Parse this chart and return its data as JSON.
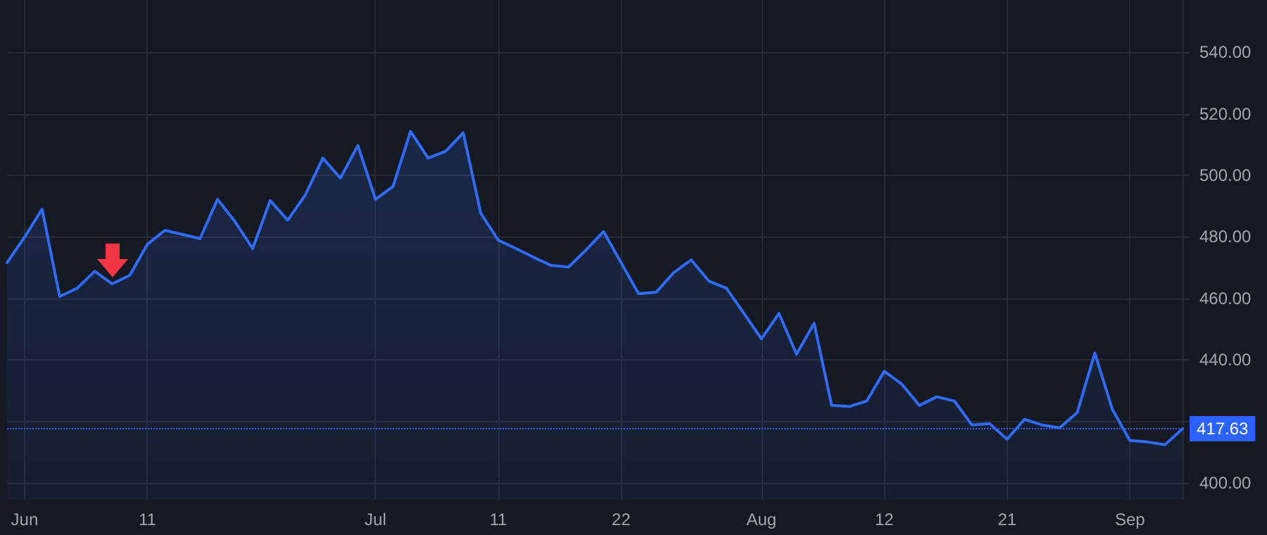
{
  "chart_data": {
    "type": "area",
    "categories": [
      null,
      "Jun",
      null,
      null,
      null,
      null,
      null,
      null,
      "11",
      null,
      null,
      null,
      null,
      null,
      null,
      null,
      null,
      null,
      null,
      null,
      null,
      "Jul",
      null,
      null,
      null,
      null,
      null,
      null,
      "11",
      null,
      null,
      null,
      null,
      null,
      null,
      "22",
      null,
      null,
      null,
      null,
      null,
      null,
      null,
      "Aug",
      null,
      null,
      null,
      null,
      null,
      null,
      "12",
      null,
      null,
      null,
      null,
      null,
      null,
      "21",
      null,
      null,
      null,
      null,
      null,
      null,
      "Sep",
      null,
      null,
      null
    ],
    "series": [
      {
        "color": "#2f6bf5",
        "values": [
          471.6,
          479.9,
          489.0,
          460.6,
          463.3,
          468.8,
          464.7,
          467.5,
          477.6,
          482.1,
          480.8,
          479.4,
          492.2,
          484.9,
          476.2,
          491.8,
          485.4,
          493.6,
          505.6,
          499.1,
          509.7,
          492.2,
          496.4,
          514.3,
          505.6,
          507.8,
          513.8,
          487.7,
          478.9,
          476.2,
          473.4,
          470.7,
          470.2,
          475.7,
          481.7,
          471.6,
          461.5,
          462.0,
          468.4,
          472.5,
          465.6,
          463.3,
          455.1,
          446.8,
          455.1,
          441.8,
          451.9,
          425.2,
          424.8,
          426.6,
          436.3,
          432.1,
          425.2,
          428.0,
          426.6,
          418.8,
          419.3,
          414.2,
          420.7,
          418.8,
          417.9,
          422.9,
          442.2,
          423.9,
          413.8,
          413.3,
          412.4,
          417.6
        ]
      }
    ],
    "ylim": [
      394.5,
      557
    ],
    "yticks": [
      {
        "value": 400,
        "label": "400.00"
      },
      {
        "value": 420,
        "label": null
      },
      {
        "value": 440,
        "label": "440.00"
      },
      {
        "value": 460,
        "label": "460.00"
      },
      {
        "value": 480,
        "label": "480.00"
      },
      {
        "value": 500,
        "label": "500.00"
      },
      {
        "value": 520,
        "label": "520.00"
      },
      {
        "value": 540,
        "label": "540.00"
      }
    ],
    "ref_lines": [
      {
        "axis": "y",
        "value": 417.63,
        "label": "417.63",
        "color": "#2962ff",
        "line_style": "dotted"
      }
    ],
    "grid": true,
    "marker": "none",
    "line_style": "solid"
  }
}
